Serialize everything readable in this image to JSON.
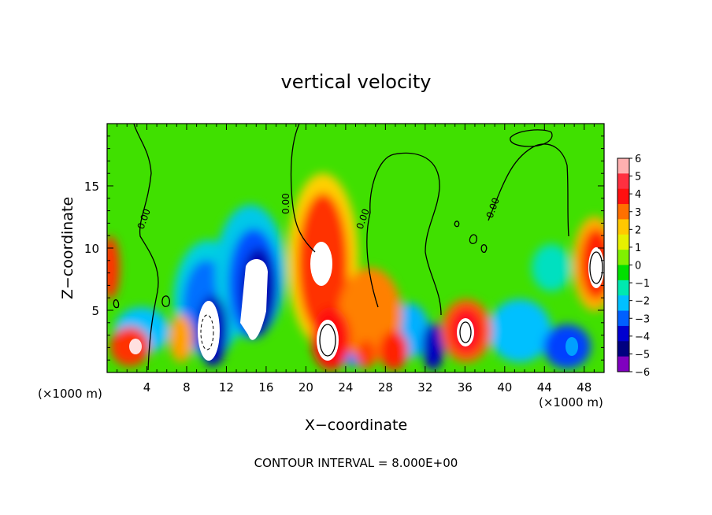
{
  "chart_data": {
    "type": "heatmap",
    "title": "vertical velocity",
    "xlabel": "X−coordinate",
    "ylabel": "Z−coordinate",
    "x_unit_left": "(×1000 m)",
    "x_unit_right": "(×1000 m)",
    "footer": "CONTOUR INTERVAL = 8.000E+00",
    "xlim": [
      0,
      50
    ],
    "ylim": [
      0,
      20
    ],
    "x_ticks": [
      4,
      8,
      12,
      16,
      20,
      24,
      28,
      32,
      36,
      40,
      44,
      48
    ],
    "y_ticks": [
      5,
      10,
      15
    ],
    "x_tick_labels": [
      "4",
      "8",
      "12",
      "16",
      "20",
      "24",
      "28",
      "32",
      "36",
      "40",
      "44",
      "48"
    ],
    "y_tick_labels": [
      "5",
      "10",
      "15"
    ],
    "contour_labels": [
      "0.00",
      "0.00",
      "0.00",
      "0.00"
    ],
    "colorbar": {
      "levels": [
        6,
        5,
        4,
        3,
        2,
        1,
        0,
        -1,
        -2,
        -3,
        -4,
        -5,
        -6
      ],
      "labels": [
        "6",
        "5",
        "4",
        "3",
        "2",
        "1",
        "0",
        "−1",
        "−2",
        "−3",
        "−4",
        "−5",
        "−6"
      ],
      "colors": [
        "#ffb0b0",
        "#ff3040",
        "#ff1010",
        "#ff7000",
        "#ffc800",
        "#e6f000",
        "#80f000",
        "#00e000",
        "#00e8b0",
        "#00c0ff",
        "#0060ff",
        "#0000d0",
        "#000080",
        "#8000c0"
      ]
    },
    "features": [
      {
        "x": 10,
        "z": 3,
        "w": -8
      },
      {
        "x": 15,
        "z": 8,
        "w": -7
      },
      {
        "x": 21.5,
        "z": 9,
        "w": 9
      },
      {
        "x": 22,
        "z": 3,
        "w": 10
      },
      {
        "x": 35.5,
        "z": 3,
        "w": 8
      },
      {
        "x": 49,
        "z": 8,
        "w": 9
      },
      {
        "x": 1.8,
        "z": 2,
        "w": 6
      },
      {
        "x": 46.5,
        "z": 2,
        "w": -6
      }
    ]
  }
}
